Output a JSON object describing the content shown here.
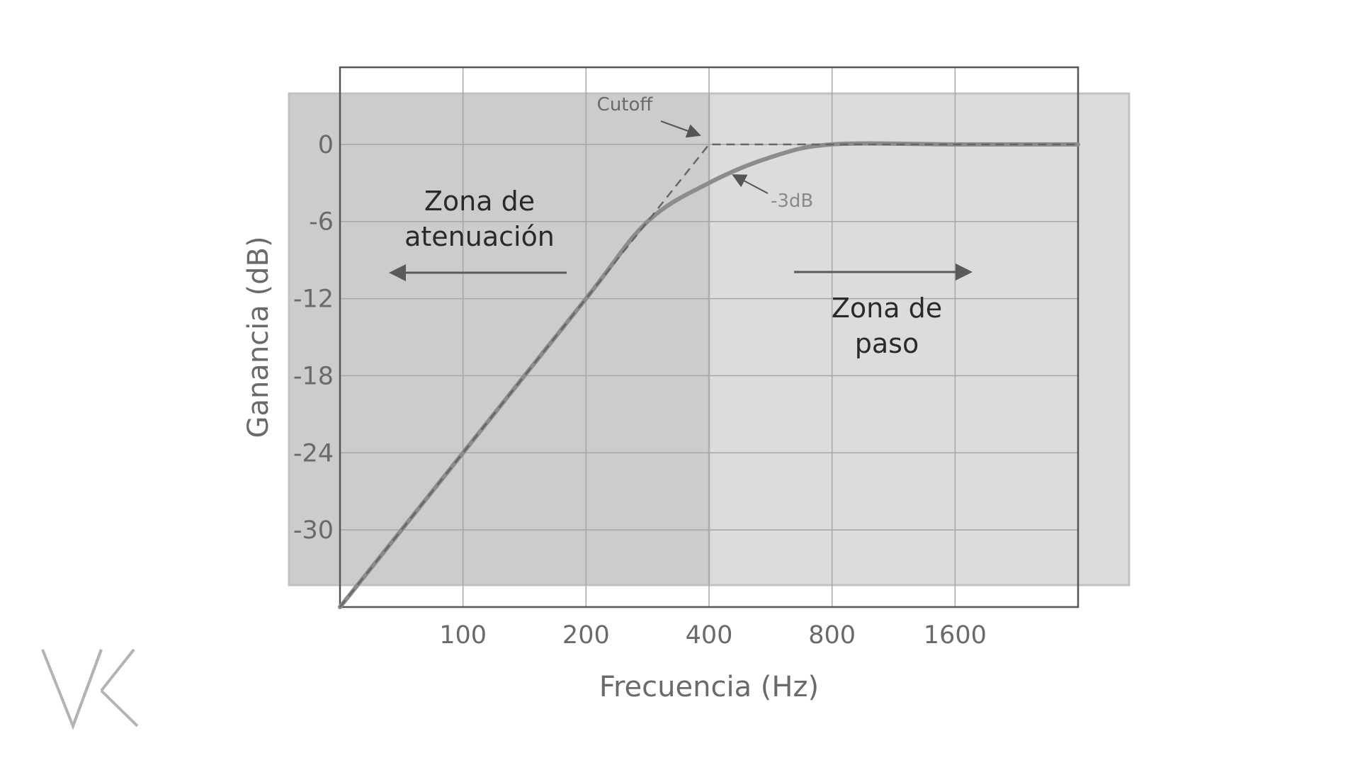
{
  "chart_data": {
    "type": "line",
    "title": "",
    "xlabel": "Frecuencia (Hz)",
    "ylabel": "Ganancia (dB)",
    "x_scale": "log2",
    "x_ticks": [
      100,
      200,
      400,
      800,
      1600
    ],
    "x_tick_labels": [
      "100",
      "200",
      "400",
      "800",
      "1600"
    ],
    "xlim": [
      50,
      3200
    ],
    "y_ticks": [
      0,
      -6,
      -12,
      -18,
      -24,
      -30
    ],
    "y_tick_labels": [
      "0",
      "-6",
      "-12",
      "-18",
      "-24",
      "-30"
    ],
    "ylim": [
      -36,
      6
    ],
    "grid": true,
    "series": [
      {
        "style": "solid",
        "color": "#8c8c8c",
        "x": [
          50,
          100,
          200,
          283,
          400,
          566,
          800,
          1600,
          3200
        ],
        "y": [
          -36,
          -24,
          -12,
          -6,
          -3,
          -1,
          0,
          0,
          0
        ]
      },
      {
        "style": "dashed",
        "color": "#666666",
        "x": [
          50,
          400,
          3200
        ],
        "y": [
          -36,
          0,
          0
        ]
      }
    ],
    "cutoff_frequency": 400,
    "regions": [
      {
        "label": "Zona de\natenuación",
        "x_range": [
          50,
          400
        ],
        "color": "#cccccc",
        "arrow": "left"
      },
      {
        "label": "Zona de\npaso",
        "x_range": [
          400,
          3200
        ],
        "color": "#dcdcdc",
        "arrow": "right"
      }
    ],
    "annotations": [
      {
        "text": "Cutoff",
        "x": 400,
        "y": 0
      },
      {
        "text": "-3dB",
        "x": 480,
        "y": -2.5
      }
    ]
  },
  "logo": {
    "text": "VK",
    "color": "#b3b3b3"
  }
}
